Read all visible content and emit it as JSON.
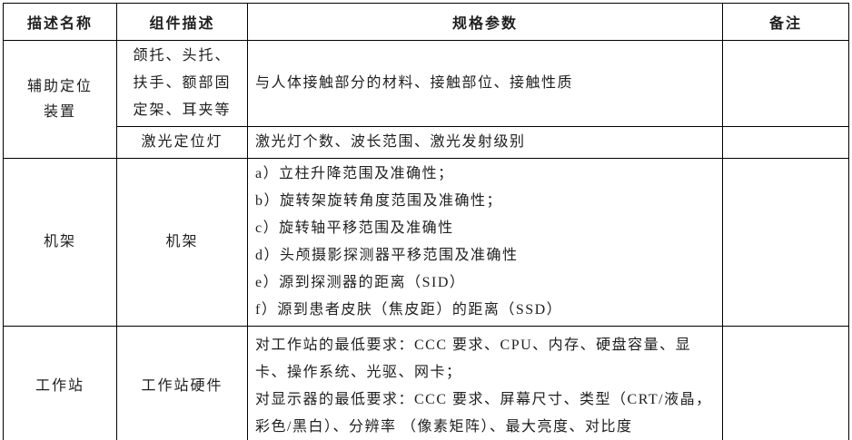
{
  "table": {
    "headers": [
      "描述名称",
      "组件描述",
      "规格参数",
      "备注"
    ],
    "aux": {
      "name": "辅助定位\n装置",
      "sub_rows": [
        {
          "component": "颌托、头托、扶手、额部固定架、耳夹等",
          "spec": "与人体接触部分的材料、接触部位、接触性质",
          "remark": ""
        },
        {
          "component": "激光定位灯",
          "spec": "激光灯个数、波长范围、激光发射级别",
          "remark": ""
        }
      ]
    },
    "gantry": {
      "name": "机架",
      "component": "机架",
      "spec_items": [
        "a）立柱升降范围及准确性；",
        "b）旋转架旋转角度范围及准确性；",
        "c）旋转轴平移范围及准确性",
        "d）头颅摄影探测器平移范围及准确性",
        "e）源到探测器的距离（SID）",
        "f）源到患者皮肤（焦皮距）的距离（SSD）"
      ],
      "remark": ""
    },
    "workstation": {
      "name": "工作站",
      "component": "工作站硬件",
      "spec_paragraphs": [
        "对工作站的最低要求：CCC 要求、CPU、内存、硬盘容量、显卡、操作系统、光驱、网卡；",
        "对显示器的最低要求：CCC 要求、屏幕尺寸、类型（CRT/液晶，彩色/黑白）、分辨率 （像素矩阵）、最大亮度、对比度"
      ],
      "remark": ""
    },
    "colors": {
      "border": "#000000",
      "text": "#1f1f1f",
      "background": "#ffffff"
    }
  }
}
